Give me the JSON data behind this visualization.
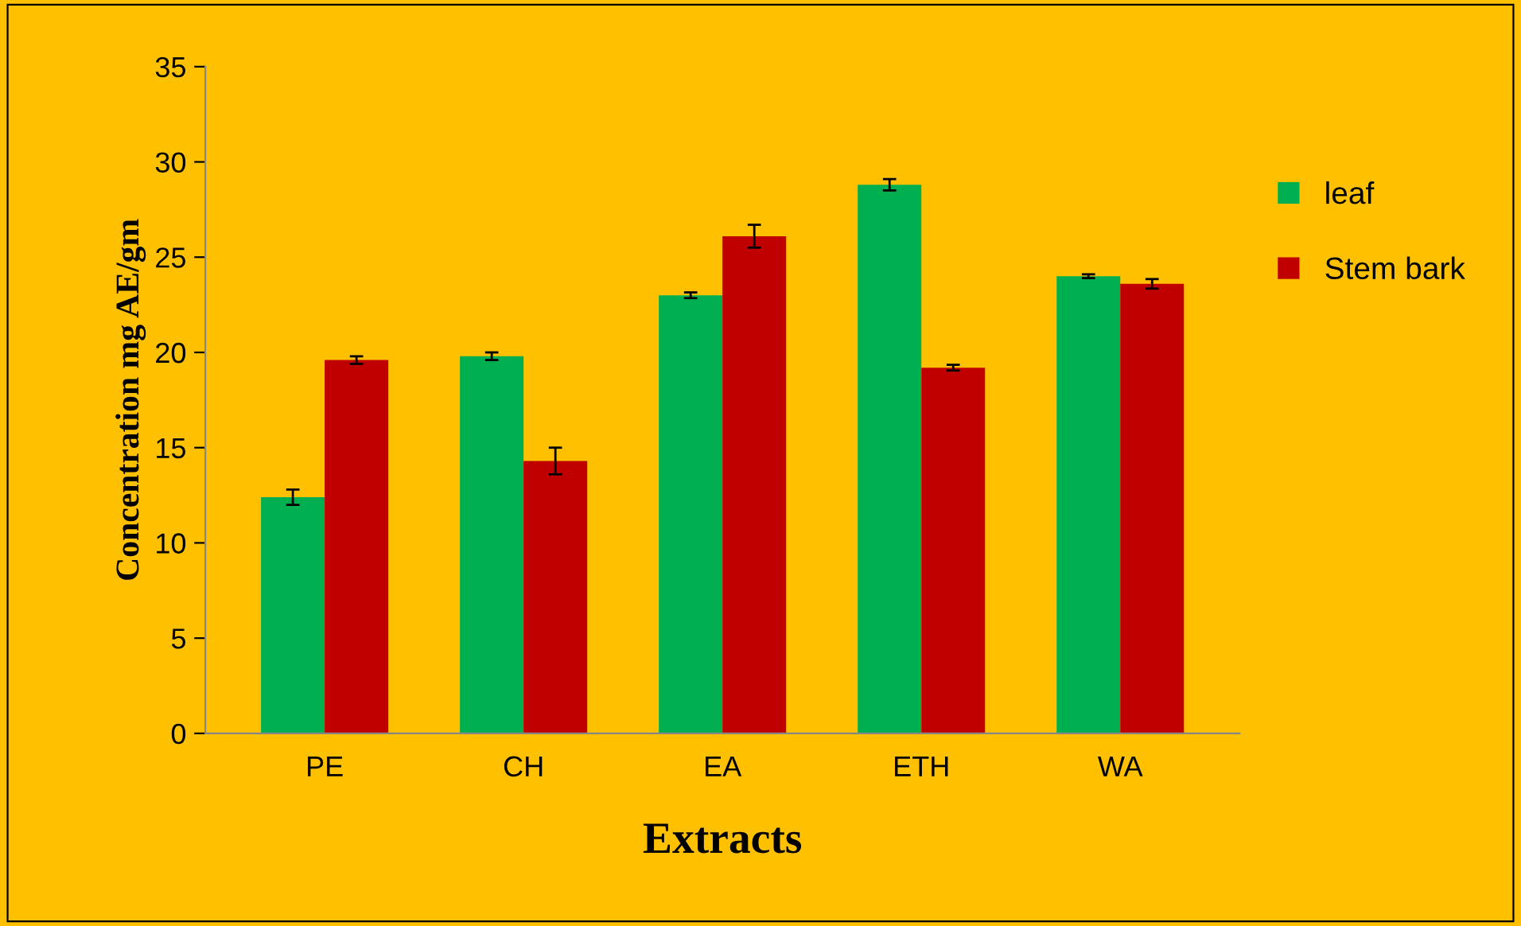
{
  "chart_data": {
    "type": "bar",
    "xlabel": "Extracts",
    "ylabel": "Concentration mg AE/gm",
    "categories": [
      "PE",
      "CH",
      "EA",
      "ETH",
      "WA"
    ],
    "series": [
      {
        "name": "leaf",
        "color": "#00b050",
        "values": [
          12.4,
          19.8,
          23.0,
          28.8,
          24.0
        ],
        "errors": [
          0.4,
          0.2,
          0.15,
          0.3,
          0.1
        ]
      },
      {
        "name": "Stem bark",
        "color": "#c00000",
        "values": [
          19.6,
          14.3,
          26.1,
          19.2,
          23.6
        ],
        "errors": [
          0.2,
          0.7,
          0.6,
          0.15,
          0.25
        ]
      }
    ],
    "ylim": [
      0,
      35
    ],
    "yticks": [
      0,
      5,
      10,
      15,
      20,
      25,
      30,
      35
    ],
    "grid": false,
    "legend": "right"
  }
}
